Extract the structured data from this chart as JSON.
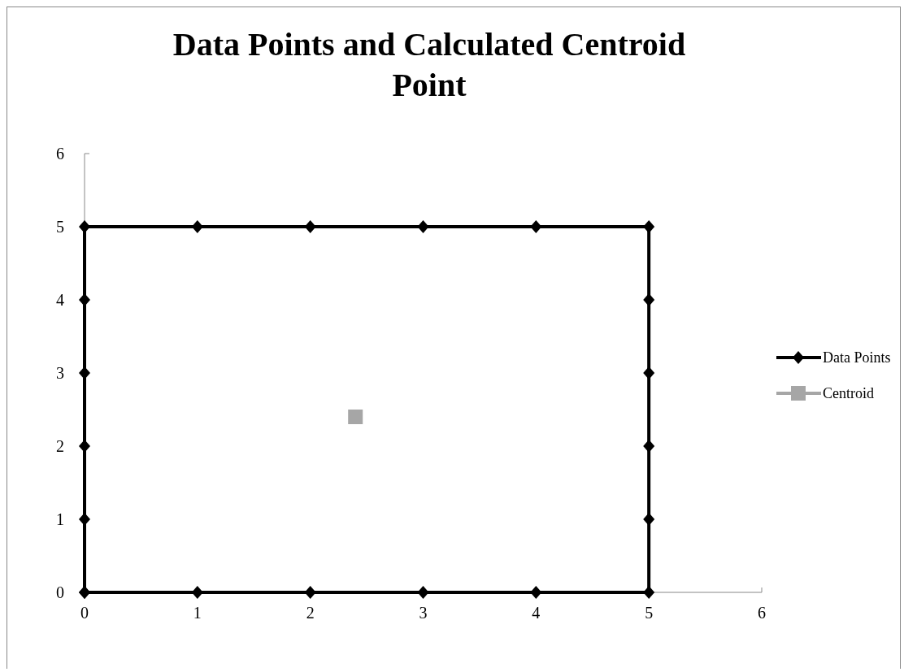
{
  "chart_data": {
    "type": "scatter",
    "title": "Data Points and Calculated Centroid Point",
    "xlim": [
      0,
      6
    ],
    "xticks": [
      0,
      1,
      2,
      3,
      4,
      5,
      6
    ],
    "ylim": [
      0,
      6
    ],
    "yticks": [
      0,
      1,
      2,
      3,
      4,
      5,
      6
    ],
    "grid": false,
    "legend": "right",
    "line_style": "solid",
    "series": [
      {
        "name": "Data Points",
        "color": "#000000",
        "marker": "diamond",
        "x": [
          0,
          1,
          2,
          3,
          4,
          5,
          5,
          5,
          5,
          5,
          5,
          4,
          3,
          2,
          1,
          0,
          0,
          0,
          0,
          0,
          0
        ],
        "values": [
          0,
          0,
          0,
          0,
          0,
          0,
          1,
          2,
          3,
          4,
          5,
          5,
          5,
          5,
          5,
          5,
          4,
          3,
          2,
          1,
          0
        ]
      },
      {
        "name": "Centroid",
        "color": "#a6a6a6",
        "marker": "square",
        "x": [
          2.4
        ],
        "values": [
          2.4
        ]
      }
    ]
  }
}
